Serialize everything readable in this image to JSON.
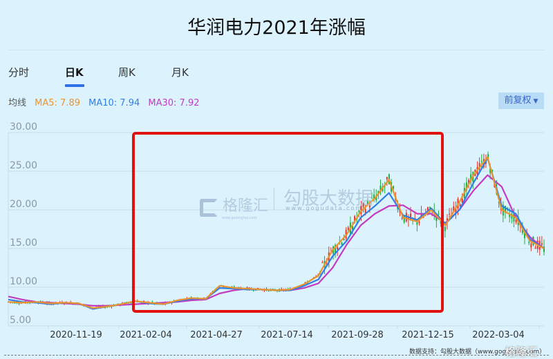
{
  "header": {
    "title": "华润电力2021年涨幅"
  },
  "tabs": [
    {
      "label": "分时",
      "active": false
    },
    {
      "label": "日K",
      "active": true
    },
    {
      "label": "周K",
      "active": false
    },
    {
      "label": "月K",
      "active": false
    }
  ],
  "ma_legend": {
    "label": "均线",
    "ma5": "MA5: 7.89",
    "ma10": "MA10: 7.94",
    "ma30": "MA30: 7.92"
  },
  "adjust_button": {
    "label": "前复权",
    "icon": "caret-down-icon"
  },
  "watermarks": {
    "brand1": "格隆汇",
    "brand1_url": "www.gelonghui.com",
    "brand2": "勾股大数据",
    "brand2_url": "www.gogudata.com"
  },
  "footer": {
    "source": "数据支持：勾股大数据（www.gogudata.com）"
  },
  "colors": {
    "ma5": "#e8952e",
    "ma10": "#2f7fe6",
    "ma30": "#c03cc0",
    "up": "#e2352b",
    "down": "#1fae3f",
    "highlight_box": "#e0110f",
    "grid": "#c6dce8",
    "background": "#dcf3fd"
  },
  "chart_data": {
    "type": "line",
    "title": "华润电力2021年涨幅",
    "subtitle": "日K 前复权",
    "xlabel": "",
    "ylabel": "",
    "ylim": [
      5,
      30
    ],
    "yticks": [
      "30.00",
      "25.00",
      "20.00",
      "15.00",
      "10.00",
      "5.00"
    ],
    "xticks": [
      "2020-11-19",
      "2021-02-04",
      "2021-04-27",
      "2021-07-14",
      "2021-09-28",
      "2021-12-15",
      "2022-03-04"
    ],
    "grid": true,
    "legend_position": "top-left",
    "annotation": "red rectangle highlighting 2021-01 through 2021-12 rise",
    "x_index_positions": [
      0,
      10,
      20,
      30,
      40,
      50,
      60,
      70,
      80,
      90,
      100,
      110,
      120,
      130,
      140,
      150,
      160,
      170,
      180,
      190,
      200,
      210,
      220,
      230,
      240,
      250,
      260,
      270,
      280,
      290,
      300,
      310,
      320,
      330,
      340,
      350,
      360,
      370,
      380
    ],
    "series": [
      {
        "name": "MA5",
        "values": [
          8.1,
          8.0,
          8.1,
          7.9,
          8.0,
          7.9,
          7.3,
          7.5,
          7.8,
          8.2,
          8.0,
          7.8,
          8.3,
          8.6,
          8.5,
          10.2,
          9.9,
          9.8,
          9.7,
          9.6,
          9.7,
          10.4,
          11.5,
          14.8,
          16.8,
          19.8,
          21.5,
          23.9,
          19.0,
          18.5,
          20.0,
          18.0,
          21.0,
          24.5,
          26.8,
          20.0,
          19.0,
          16.0,
          15.0
        ]
      },
      {
        "name": "MA10",
        "values": [
          8.4,
          8.1,
          8.0,
          7.8,
          8.0,
          7.9,
          7.2,
          7.5,
          7.8,
          8.2,
          7.9,
          7.8,
          8.2,
          8.5,
          8.5,
          9.9,
          9.8,
          9.7,
          9.7,
          9.6,
          9.6,
          10.2,
          11.0,
          14.0,
          16.0,
          19.0,
          20.5,
          22.2,
          19.3,
          18.7,
          20.2,
          18.2,
          20.0,
          23.5,
          26.7,
          20.5,
          19.5,
          16.2,
          15.0
        ]
      },
      {
        "name": "MA30",
        "values": [
          8.8,
          8.4,
          8.1,
          8.0,
          7.9,
          7.8,
          7.6,
          7.6,
          7.7,
          7.8,
          7.9,
          8.0,
          8.1,
          8.3,
          8.4,
          9.2,
          9.6,
          9.8,
          9.7,
          9.6,
          9.6,
          9.9,
          10.5,
          12.5,
          15.5,
          18.0,
          19.5,
          20.5,
          20.6,
          19.5,
          19.5,
          18.3,
          20.0,
          22.5,
          24.5,
          23.0,
          19.0,
          16.5,
          15.0
        ]
      }
    ]
  }
}
